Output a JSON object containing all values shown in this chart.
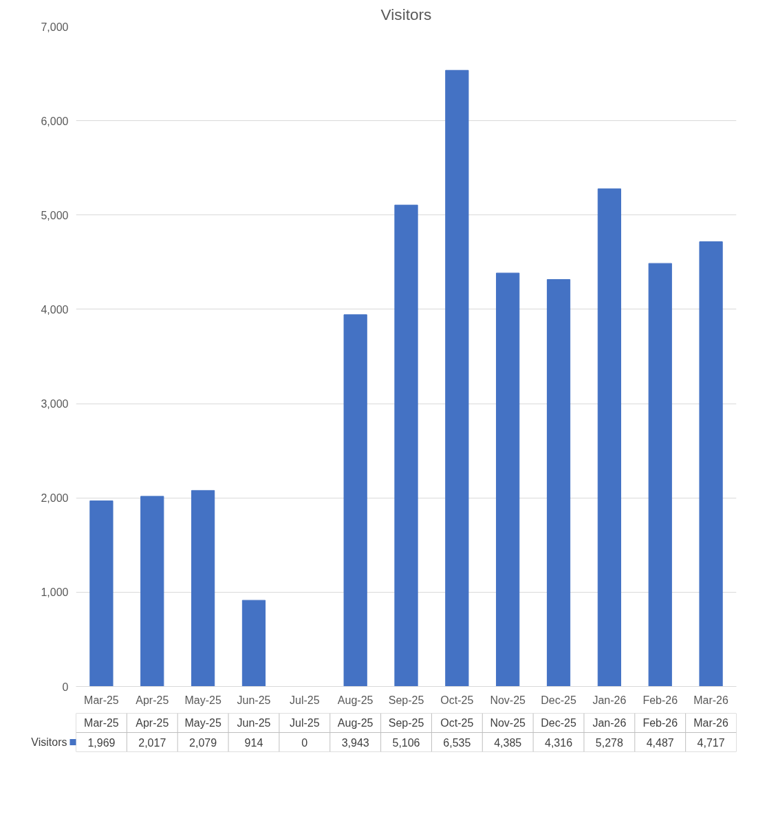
{
  "chart_data": {
    "type": "bar",
    "title": "Visitors",
    "categories": [
      "Mar-25",
      "Apr-25",
      "May-25",
      "Jun-25",
      "Jul-25",
      "Aug-25",
      "Sep-25",
      "Oct-25",
      "Nov-25",
      "Dec-25",
      "Jan-26",
      "Feb-26",
      "Mar-26"
    ],
    "series": [
      {
        "name": "Visitors",
        "color": "#4472c4",
        "values": [
          1969,
          2017,
          2079,
          914,
          0,
          3943,
          5106,
          6535,
          4385,
          4316,
          5278,
          4487,
          4717
        ],
        "value_labels": [
          "1,969",
          "2,017",
          "2,079",
          "914",
          "0",
          "3,943",
          "5,106",
          "6,535",
          "4,385",
          "4,316",
          "5,278",
          "4,487",
          "4,717"
        ]
      }
    ],
    "ylim": [
      0,
      7000
    ],
    "yticks": [
      0,
      {
        "value": 1000,
        "label": "1,000"
      },
      {
        "value": 2000,
        "label": "2,000"
      },
      {
        "value": 3000,
        "label": "3,000"
      },
      {
        "value": 4000,
        "label": "4,000"
      },
      {
        "value": 5000,
        "label": "5,000"
      },
      {
        "value": 6000,
        "label": "6,000"
      },
      {
        "value": 7000,
        "label": "7,000"
      }
    ],
    "grid": "y",
    "legend": "bottom"
  }
}
